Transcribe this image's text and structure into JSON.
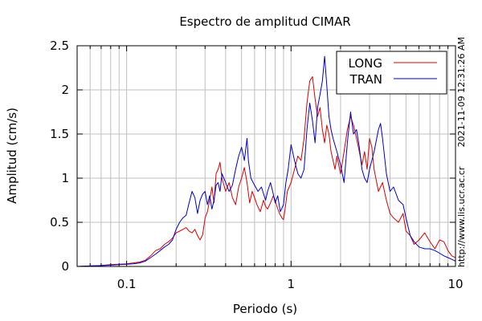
{
  "chart_data": {
    "type": "line",
    "title": "Espectro de amplitud CIMAR",
    "xlabel": "Periodo (s)",
    "ylabel": "Amplitud (cm/s)",
    "xscale": "log",
    "xlim": [
      0.05,
      10
    ],
    "ylim": [
      0,
      2.5
    ],
    "grid": true,
    "legend_position": "top-right",
    "x_ticks": [
      {
        "value": 0.1,
        "label": "0.1"
      },
      {
        "value": 1,
        "label": "1"
      },
      {
        "value": 10,
        "label": "10"
      }
    ],
    "y_ticks": [
      {
        "value": 0,
        "label": "0"
      },
      {
        "value": 0.5,
        "label": "0.5"
      },
      {
        "value": 1,
        "label": "1"
      },
      {
        "value": 1.5,
        "label": "1.5"
      },
      {
        "value": 2,
        "label": "2"
      },
      {
        "value": 2.5,
        "label": "2.5"
      }
    ],
    "series": [
      {
        "name": "LONG",
        "color": "#dd0000",
        "points": [
          [
            0.05,
            0.0
          ],
          [
            0.06,
            0.005
          ],
          [
            0.07,
            0.01
          ],
          [
            0.08,
            0.02
          ],
          [
            0.09,
            0.025
          ],
          [
            0.1,
            0.03
          ],
          [
            0.11,
            0.04
          ],
          [
            0.12,
            0.05
          ],
          [
            0.13,
            0.07
          ],
          [
            0.14,
            0.12
          ],
          [
            0.15,
            0.18
          ],
          [
            0.16,
            0.2
          ],
          [
            0.17,
            0.25
          ],
          [
            0.18,
            0.28
          ],
          [
            0.19,
            0.32
          ],
          [
            0.2,
            0.38
          ],
          [
            0.21,
            0.4
          ],
          [
            0.22,
            0.42
          ],
          [
            0.23,
            0.44
          ],
          [
            0.24,
            0.4
          ],
          [
            0.25,
            0.38
          ],
          [
            0.26,
            0.42
          ],
          [
            0.27,
            0.35
          ],
          [
            0.28,
            0.3
          ],
          [
            0.29,
            0.36
          ],
          [
            0.3,
            0.55
          ],
          [
            0.31,
            0.62
          ],
          [
            0.32,
            0.75
          ],
          [
            0.33,
            0.9
          ],
          [
            0.34,
            0.72
          ],
          [
            0.35,
            1.05
          ],
          [
            0.36,
            1.1
          ],
          [
            0.37,
            1.18
          ],
          [
            0.38,
            1.0
          ],
          [
            0.4,
            0.85
          ],
          [
            0.42,
            0.95
          ],
          [
            0.44,
            0.78
          ],
          [
            0.46,
            0.7
          ],
          [
            0.48,
            0.9
          ],
          [
            0.5,
            1.0
          ],
          [
            0.52,
            1.12
          ],
          [
            0.54,
            0.95
          ],
          [
            0.56,
            0.72
          ],
          [
            0.58,
            0.85
          ],
          [
            0.6,
            0.78
          ],
          [
            0.62,
            0.7
          ],
          [
            0.65,
            0.62
          ],
          [
            0.68,
            0.75
          ],
          [
            0.7,
            0.68
          ],
          [
            0.72,
            0.65
          ],
          [
            0.75,
            0.72
          ],
          [
            0.78,
            0.8
          ],
          [
            0.8,
            0.75
          ],
          [
            0.82,
            0.68
          ],
          [
            0.85,
            0.6
          ],
          [
            0.88,
            0.55
          ],
          [
            0.9,
            0.53
          ],
          [
            0.92,
            0.65
          ],
          [
            0.95,
            0.85
          ],
          [
            1.0,
            0.95
          ],
          [
            1.05,
            1.1
          ],
          [
            1.1,
            1.25
          ],
          [
            1.15,
            1.2
          ],
          [
            1.2,
            1.45
          ],
          [
            1.25,
            1.85
          ],
          [
            1.3,
            2.1
          ],
          [
            1.35,
            2.15
          ],
          [
            1.4,
            1.9
          ],
          [
            1.45,
            1.7
          ],
          [
            1.5,
            1.8
          ],
          [
            1.55,
            1.55
          ],
          [
            1.6,
            1.4
          ],
          [
            1.65,
            1.6
          ],
          [
            1.7,
            1.5
          ],
          [
            1.75,
            1.3
          ],
          [
            1.8,
            1.2
          ],
          [
            1.85,
            1.1
          ],
          [
            1.9,
            1.25
          ],
          [
            2.0,
            1.05
          ],
          [
            2.1,
            1.3
          ],
          [
            2.2,
            1.55
          ],
          [
            2.3,
            1.7
          ],
          [
            2.4,
            1.6
          ],
          [
            2.5,
            1.45
          ],
          [
            2.6,
            1.3
          ],
          [
            2.7,
            1.15
          ],
          [
            2.8,
            1.3
          ],
          [
            2.9,
            1.1
          ],
          [
            3.0,
            1.45
          ],
          [
            3.1,
            1.35
          ],
          [
            3.2,
            1.1
          ],
          [
            3.4,
            0.85
          ],
          [
            3.6,
            0.95
          ],
          [
            3.8,
            0.75
          ],
          [
            4.0,
            0.6
          ],
          [
            4.2,
            0.55
          ],
          [
            4.5,
            0.5
          ],
          [
            4.8,
            0.6
          ],
          [
            5.0,
            0.4
          ],
          [
            5.3,
            0.35
          ],
          [
            5.6,
            0.25
          ],
          [
            6.0,
            0.3
          ],
          [
            6.5,
            0.38
          ],
          [
            7.0,
            0.28
          ],
          [
            7.5,
            0.2
          ],
          [
            8.0,
            0.3
          ],
          [
            8.5,
            0.28
          ],
          [
            9.0,
            0.18
          ],
          [
            9.5,
            0.12
          ],
          [
            10.0,
            0.1
          ]
        ]
      },
      {
        "name": "TRAN",
        "color": "#0000cc",
        "points": [
          [
            0.05,
            0.0
          ],
          [
            0.06,
            0.005
          ],
          [
            0.07,
            0.01
          ],
          [
            0.08,
            0.015
          ],
          [
            0.09,
            0.02
          ],
          [
            0.1,
            0.025
          ],
          [
            0.11,
            0.03
          ],
          [
            0.12,
            0.04
          ],
          [
            0.13,
            0.06
          ],
          [
            0.14,
            0.1
          ],
          [
            0.15,
            0.14
          ],
          [
            0.16,
            0.18
          ],
          [
            0.17,
            0.22
          ],
          [
            0.18,
            0.25
          ],
          [
            0.19,
            0.3
          ],
          [
            0.2,
            0.42
          ],
          [
            0.21,
            0.5
          ],
          [
            0.22,
            0.55
          ],
          [
            0.23,
            0.58
          ],
          [
            0.24,
            0.72
          ],
          [
            0.25,
            0.85
          ],
          [
            0.26,
            0.78
          ],
          [
            0.27,
            0.6
          ],
          [
            0.28,
            0.75
          ],
          [
            0.29,
            0.82
          ],
          [
            0.3,
            0.85
          ],
          [
            0.31,
            0.7
          ],
          [
            0.32,
            0.8
          ],
          [
            0.33,
            0.65
          ],
          [
            0.34,
            0.75
          ],
          [
            0.35,
            0.92
          ],
          [
            0.36,
            0.95
          ],
          [
            0.37,
            0.85
          ],
          [
            0.38,
            1.05
          ],
          [
            0.4,
            0.95
          ],
          [
            0.42,
            0.85
          ],
          [
            0.44,
            0.92
          ],
          [
            0.46,
            1.1
          ],
          [
            0.48,
            1.25
          ],
          [
            0.5,
            1.35
          ],
          [
            0.52,
            1.2
          ],
          [
            0.54,
            1.45
          ],
          [
            0.55,
            1.2
          ],
          [
            0.57,
            1.0
          ],
          [
            0.6,
            0.92
          ],
          [
            0.63,
            0.85
          ],
          [
            0.66,
            0.9
          ],
          [
            0.7,
            0.75
          ],
          [
            0.72,
            0.85
          ],
          [
            0.75,
            0.95
          ],
          [
            0.78,
            0.82
          ],
          [
            0.8,
            0.72
          ],
          [
            0.83,
            0.8
          ],
          [
            0.86,
            0.62
          ],
          [
            0.9,
            0.7
          ],
          [
            0.93,
            0.95
          ],
          [
            0.96,
            1.1
          ],
          [
            1.0,
            1.38
          ],
          [
            1.05,
            1.2
          ],
          [
            1.1,
            1.05
          ],
          [
            1.15,
            1.0
          ],
          [
            1.2,
            1.1
          ],
          [
            1.25,
            1.55
          ],
          [
            1.3,
            1.85
          ],
          [
            1.35,
            1.65
          ],
          [
            1.4,
            1.4
          ],
          [
            1.45,
            1.8
          ],
          [
            1.5,
            1.95
          ],
          [
            1.55,
            2.1
          ],
          [
            1.6,
            2.38
          ],
          [
            1.65,
            2.05
          ],
          [
            1.7,
            1.7
          ],
          [
            1.75,
            1.55
          ],
          [
            1.8,
            1.45
          ],
          [
            1.9,
            1.3
          ],
          [
            2.0,
            1.15
          ],
          [
            2.1,
            0.95
          ],
          [
            2.2,
            1.4
          ],
          [
            2.3,
            1.75
          ],
          [
            2.4,
            1.5
          ],
          [
            2.5,
            1.55
          ],
          [
            2.6,
            1.35
          ],
          [
            2.7,
            1.1
          ],
          [
            2.8,
            1.0
          ],
          [
            2.9,
            0.95
          ],
          [
            3.0,
            1.1
          ],
          [
            3.2,
            1.3
          ],
          [
            3.4,
            1.55
          ],
          [
            3.5,
            1.62
          ],
          [
            3.6,
            1.45
          ],
          [
            3.8,
            1.05
          ],
          [
            4.0,
            0.85
          ],
          [
            4.2,
            0.9
          ],
          [
            4.5,
            0.75
          ],
          [
            4.8,
            0.7
          ],
          [
            5.0,
            0.55
          ],
          [
            5.3,
            0.35
          ],
          [
            5.6,
            0.28
          ],
          [
            6.0,
            0.22
          ],
          [
            6.5,
            0.2
          ],
          [
            7.0,
            0.2
          ],
          [
            7.5,
            0.18
          ],
          [
            8.0,
            0.15
          ],
          [
            8.5,
            0.12
          ],
          [
            9.0,
            0.1
          ],
          [
            9.5,
            0.08
          ],
          [
            10.0,
            0.06
          ]
        ]
      }
    ]
  },
  "side_texts": {
    "timestamp": "2021-11-09 12:31:26 AM",
    "url": "http://www.lis.ucr.ac.cr"
  }
}
